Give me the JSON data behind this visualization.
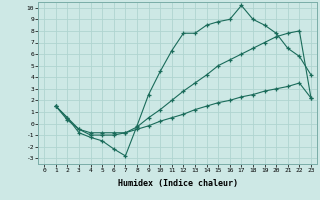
{
  "xlabel": "Humidex (Indice chaleur)",
  "ylabel": "",
  "background_color": "#cde8e5",
  "grid_color": "#b0d4d0",
  "line_color": "#1a6b5a",
  "xlim": [
    -0.5,
    23.5
  ],
  "ylim": [
    -3.5,
    10.5
  ],
  "xticks": [
    0,
    1,
    2,
    3,
    4,
    5,
    6,
    7,
    8,
    9,
    10,
    11,
    12,
    13,
    14,
    15,
    16,
    17,
    18,
    19,
    20,
    21,
    22,
    23
  ],
  "yticks": [
    -3,
    -2,
    -1,
    0,
    1,
    2,
    3,
    4,
    5,
    6,
    7,
    8,
    9,
    10
  ],
  "series_max": [
    [
      1,
      1.5
    ],
    [
      2,
      0.5
    ],
    [
      3,
      -0.8
    ],
    [
      4,
      -1.2
    ],
    [
      5,
      -1.5
    ],
    [
      6,
      -2.2
    ],
    [
      7,
      -2.8
    ],
    [
      8,
      -0.2
    ],
    [
      9,
      2.5
    ],
    [
      10,
      4.5
    ],
    [
      11,
      6.3
    ],
    [
      12,
      7.8
    ],
    [
      13,
      7.8
    ],
    [
      14,
      8.5
    ],
    [
      15,
      8.8
    ],
    [
      16,
      9.0
    ],
    [
      17,
      10.2
    ],
    [
      18,
      9.0
    ],
    [
      19,
      8.5
    ],
    [
      20,
      7.8
    ],
    [
      21,
      6.5
    ],
    [
      22,
      5.8
    ],
    [
      23,
      4.2
    ]
  ],
  "series_mean": [
    [
      1,
      1.5
    ],
    [
      2,
      0.5
    ],
    [
      3,
      -0.5
    ],
    [
      4,
      -1.0
    ],
    [
      5,
      -1.0
    ],
    [
      6,
      -1.0
    ],
    [
      7,
      -0.8
    ],
    [
      8,
      -0.3
    ],
    [
      9,
      0.5
    ],
    [
      10,
      1.2
    ],
    [
      11,
      2.0
    ],
    [
      12,
      2.8
    ],
    [
      13,
      3.5
    ],
    [
      14,
      4.2
    ],
    [
      15,
      5.0
    ],
    [
      16,
      5.5
    ],
    [
      17,
      6.0
    ],
    [
      18,
      6.5
    ],
    [
      19,
      7.0
    ],
    [
      20,
      7.5
    ],
    [
      21,
      7.8
    ],
    [
      22,
      8.0
    ],
    [
      23,
      2.2
    ]
  ],
  "series_min": [
    [
      1,
      1.5
    ],
    [
      2,
      0.3
    ],
    [
      3,
      -0.5
    ],
    [
      4,
      -0.8
    ],
    [
      5,
      -0.8
    ],
    [
      6,
      -0.8
    ],
    [
      7,
      -0.8
    ],
    [
      8,
      -0.5
    ],
    [
      9,
      -0.2
    ],
    [
      10,
      0.2
    ],
    [
      11,
      0.5
    ],
    [
      12,
      0.8
    ],
    [
      13,
      1.2
    ],
    [
      14,
      1.5
    ],
    [
      15,
      1.8
    ],
    [
      16,
      2.0
    ],
    [
      17,
      2.3
    ],
    [
      18,
      2.5
    ],
    [
      19,
      2.8
    ],
    [
      20,
      3.0
    ],
    [
      21,
      3.2
    ],
    [
      22,
      3.5
    ],
    [
      23,
      2.2
    ]
  ]
}
